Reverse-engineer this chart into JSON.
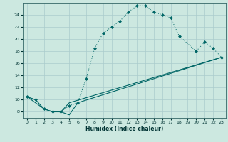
{
  "xlabel": "Humidex (Indice chaleur)",
  "bg_color": "#cce8e0",
  "grid_color": "#aacccc",
  "line_color": "#006666",
  "xlim": [
    -0.5,
    23.5
  ],
  "ylim": [
    7,
    26
  ],
  "xticks": [
    0,
    1,
    2,
    3,
    4,
    5,
    6,
    7,
    8,
    9,
    10,
    11,
    12,
    13,
    14,
    15,
    16,
    17,
    18,
    19,
    20,
    21,
    22,
    23
  ],
  "yticks": [
    8,
    10,
    12,
    14,
    16,
    18,
    20,
    22,
    24
  ],
  "line1_dotted": {
    "x": [
      0,
      1,
      2,
      3,
      4,
      5,
      6,
      7,
      8,
      9,
      10,
      11,
      12,
      13,
      14,
      15,
      16,
      17,
      18,
      20,
      21,
      22,
      23
    ],
    "y": [
      10.5,
      10,
      8.5,
      8,
      8,
      9.0,
      9.5,
      13.5,
      18.5,
      21.0,
      22.0,
      23.0,
      24.5,
      25.5,
      25.5,
      24.5,
      24.0,
      23.5,
      20.5,
      18.0,
      19.5,
      18.5,
      17.0
    ]
  },
  "line2_solid": {
    "x": [
      0,
      1,
      2,
      3,
      4,
      5,
      6,
      23
    ],
    "y": [
      10.5,
      10,
      8.5,
      8,
      8,
      7.5,
      9.5,
      17.0
    ]
  },
  "line3_solid": {
    "x": [
      0,
      2,
      3,
      4,
      5,
      23
    ],
    "y": [
      10.5,
      8.5,
      8,
      8,
      9.5,
      17.0
    ]
  }
}
